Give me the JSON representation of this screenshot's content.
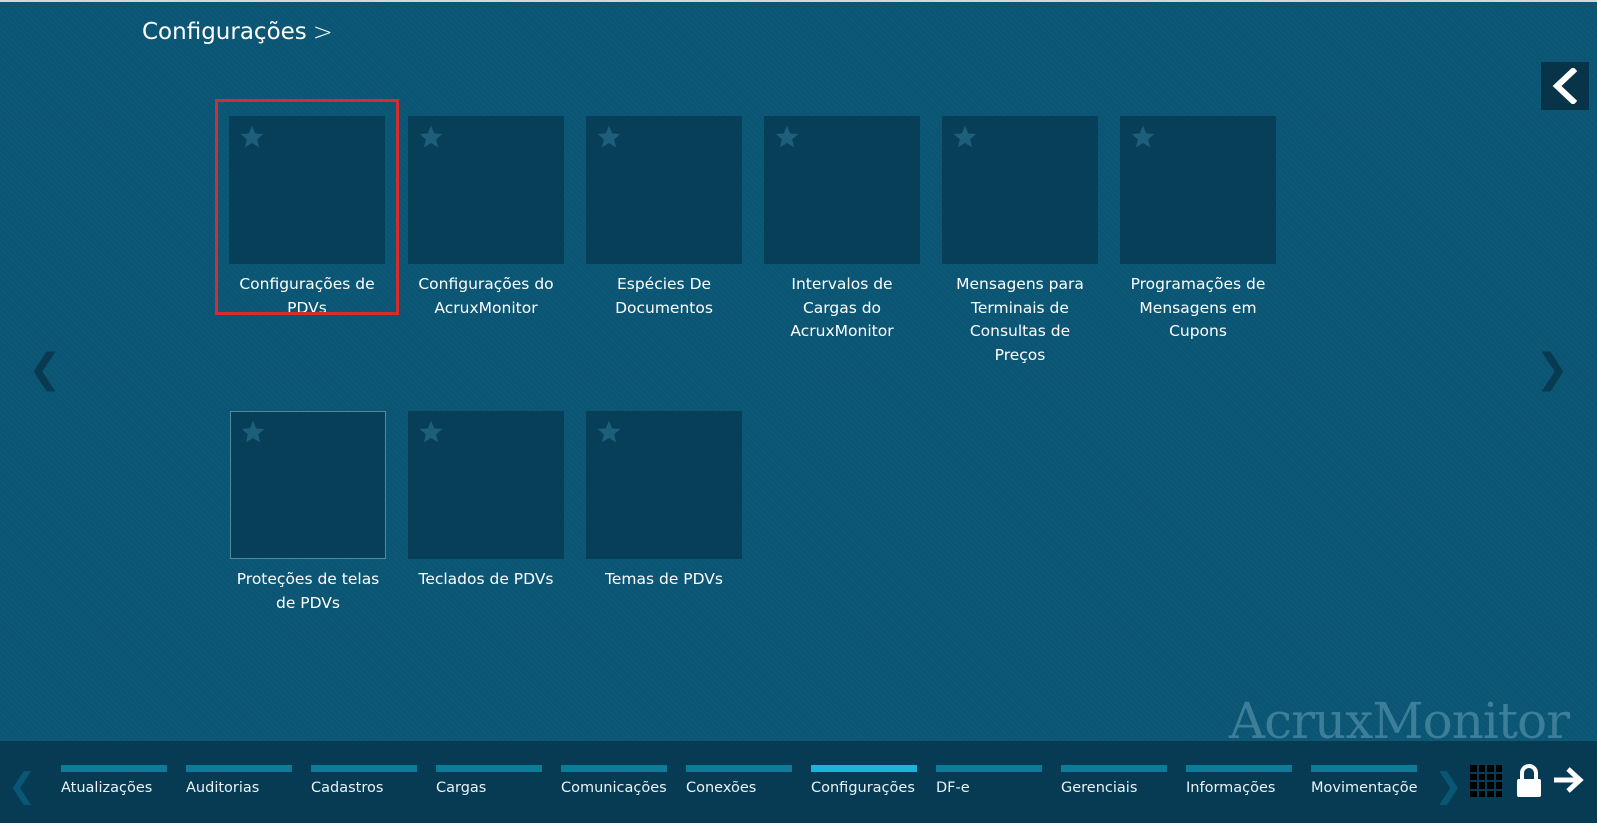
{
  "header": {
    "title": "Configurações",
    "chevron": ">"
  },
  "tiles": [
    {
      "label_lines": [
        "Configurações de",
        "PDVs"
      ],
      "selected": true
    },
    {
      "label_lines": [
        "Configurações do",
        "AcruxMonitor"
      ]
    },
    {
      "label_lines": [
        "Espécies De",
        "Documentos"
      ]
    },
    {
      "label_lines": [
        "Intervalos de",
        "Cargas do",
        "AcruxMonitor"
      ]
    },
    {
      "label_lines": [
        "Mensagens para",
        "Terminais de",
        "Consultas de",
        "Preços"
      ]
    },
    {
      "label_lines": [
        "Programações de",
        "Mensagens em",
        "Cupons"
      ]
    },
    {
      "label_lines": [
        "Proteções de telas",
        "de PDVs"
      ]
    },
    {
      "label_lines": [
        "Teclados de PDVs"
      ]
    },
    {
      "label_lines": [
        "Temas de PDVs"
      ]
    }
  ],
  "tile_labels": {
    "t0": "Configurações de\nPDVs",
    "t1": "Configurações do\nAcruxMonitor",
    "t2": "Espécies De\nDocumentos",
    "t3": "Intervalos de\nCargas do\nAcruxMonitor",
    "t4": "Mensagens para\nTerminais de\nConsultas de\nPreços",
    "t5": "Programações de\nMensagens em\nCupons",
    "t6": "Proteções de telas\nde PDVs",
    "t7": "Teclados de PDVs",
    "t8": "Temas de PDVs"
  },
  "watermark": "AcruxMonitor",
  "arrows": {
    "left": "❮",
    "right": "❯"
  },
  "bottom_nav": {
    "items": [
      "Atualizações",
      "Auditorias",
      "Cadastros",
      "Cargas",
      "Comunicações",
      "Conexões",
      "Configurações",
      "DF-e",
      "Gerenciais",
      "Informações",
      "Movimentações"
    ],
    "active": "Configurações"
  },
  "colors": {
    "background": "#0b5675",
    "tile": "#073f58",
    "selected_outline": "#d32d2d",
    "nav_bar": "#0e7c99",
    "nav_bar_active": "#18b5d8"
  }
}
